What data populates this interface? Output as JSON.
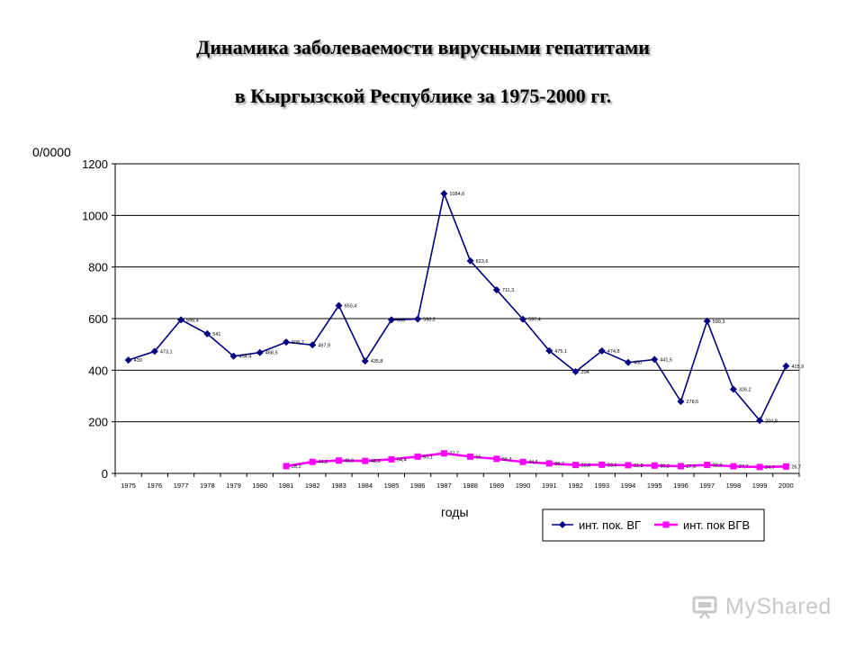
{
  "chart_data": {
    "type": "line",
    "title_line1": "Динамика заболеваемости вирусными гепатитами",
    "title_line2": "в Кыргызской Республике за 1975-2000 гг.",
    "ylabel": "0/0000",
    "xlabel": "годы",
    "ylim": [
      0,
      1200
    ],
    "yticks": [
      "0",
      "200",
      "400",
      "600",
      "800",
      "1000",
      "1200"
    ],
    "grid": "horizontal",
    "legend_position": "bottom-right",
    "categories": [
      "1975",
      "1976",
      "1977",
      "1978",
      "1979",
      "1980",
      "1981",
      "1982",
      "1983",
      "1984",
      "1985",
      "1986",
      "1987",
      "1988",
      "1989",
      "1990",
      "1991",
      "1992",
      "1993",
      "1994",
      "1995",
      "1996",
      "1997",
      "1998",
      "1999",
      "2000"
    ],
    "series": [
      {
        "name": "инт. пок. ВГ",
        "color": "#000080",
        "marker": "diamond",
        "values": [
          439,
          473.1,
          595.4,
          541,
          454.4,
          468.5,
          508.7,
          497.9,
          650.4,
          435.8,
          595,
          598.2,
          1084.6,
          823.6,
          711.3,
          597.4,
          475.1,
          394,
          474.8,
          430,
          441.5,
          278.6,
          590.3,
          326.2,
          204.8,
          415.9
        ],
        "labels": [
          "439",
          "473,1",
          "595,4",
          "541",
          "454,4",
          "468,5",
          "508,7",
          "497,9",
          "650,4",
          "435,8",
          "595",
          "598,2",
          "1084,6",
          "823,6",
          "711,3",
          "597,4",
          "475,1",
          "394",
          "474,8",
          "430",
          "441,5",
          "278,6",
          "590,3",
          "326,2",
          "204,8",
          "415,9"
        ]
      },
      {
        "name": "инт. пок ВГВ",
        "color": "#ff00ff",
        "marker": "square",
        "values": [
          null,
          null,
          null,
          null,
          null,
          null,
          28.2,
          44.6,
          49.9,
          48.3,
          54.4,
          65.1,
          77.7,
          65,
          56.3,
          44.5,
          38.7,
          32.6,
          33.6,
          31.8,
          30.2,
          27.9,
          32.9,
          27.7,
          24.7,
          26.7
        ],
        "labels": [
          null,
          null,
          null,
          null,
          null,
          null,
          "28,2",
          "44,6",
          "49,9",
          "48,3",
          "54,4",
          "65,1",
          "77,7",
          "65",
          "56,3",
          "44,5",
          "38,7",
          "32,6",
          "33,6",
          "31,8",
          "30,2",
          "27,9",
          "32,9",
          "27,7",
          "24,7",
          "26,7"
        ]
      }
    ]
  },
  "watermark": {
    "text": "MyShared",
    "color": "#c8c8c8"
  }
}
